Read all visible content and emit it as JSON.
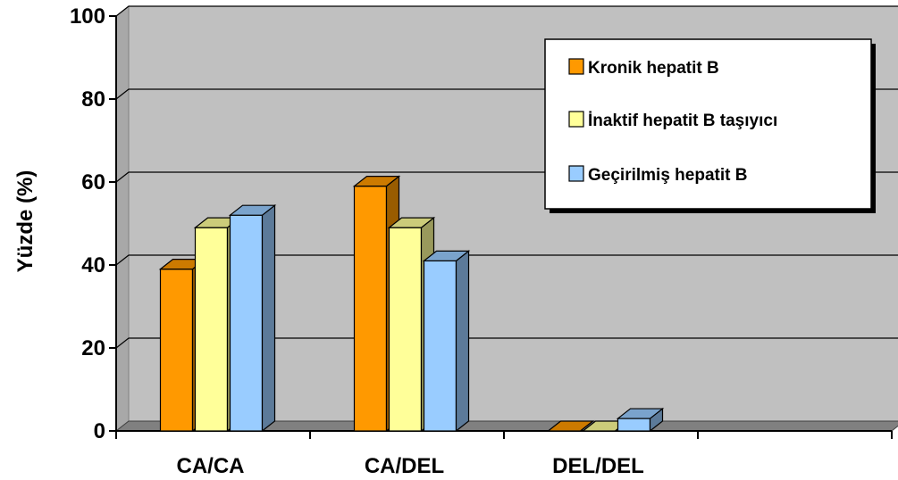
{
  "chart_data": {
    "type": "bar",
    "title": "",
    "xlabel": "",
    "ylabel": "Yüzde (%)",
    "ylim": [
      0,
      100
    ],
    "yticks": [
      0,
      20,
      40,
      60,
      80,
      100
    ],
    "categories": [
      "CA/CA",
      "CA/DEL",
      "DEL/DEL",
      ""
    ],
    "series": [
      {
        "name": "Kronik hepatit B",
        "values": [
          39,
          59,
          0,
          null
        ],
        "color": "#FF9900",
        "side_color": "#995C00",
        "top_color": "#CC7A00"
      },
      {
        "name": "İnaktif hepatit B taşıyıcı",
        "values": [
          49,
          49,
          0,
          null
        ],
        "color": "#FFFF99",
        "side_color": "#99995C",
        "top_color": "#CCCC7A"
      },
      {
        "name": "Geçirilmiş hepatit B",
        "values": [
          52,
          41,
          3,
          null
        ],
        "color": "#99CCFF",
        "side_color": "#5C7A99",
        "top_color": "#7AA3CC"
      }
    ],
    "grid": true,
    "legend_position": "top-right",
    "plot_background": "#C0C0C0"
  }
}
